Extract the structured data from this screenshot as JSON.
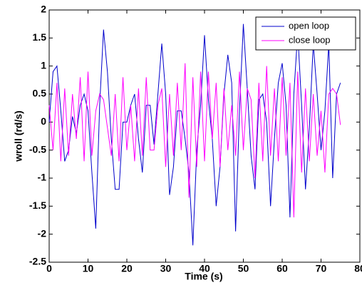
{
  "chart_data": {
    "type": "line",
    "xlabel": "Time (s)",
    "ylabel": "wroll (rd/s)",
    "x": [
      0,
      1,
      2,
      3,
      4,
      5,
      6,
      7,
      8,
      9,
      10,
      11,
      12,
      13,
      14,
      15,
      16,
      17,
      18,
      19,
      20,
      21,
      22,
      23,
      24,
      25,
      26,
      27,
      28,
      29,
      30,
      31,
      32,
      33,
      34,
      35,
      36,
      37,
      38,
      39,
      40,
      41,
      42,
      43,
      44,
      45,
      46,
      47,
      48,
      49,
      50,
      51,
      52,
      53,
      54,
      55,
      56,
      57,
      58,
      59,
      60,
      61,
      62,
      63,
      64,
      65,
      66,
      67,
      68,
      69,
      70,
      71,
      72,
      73,
      74,
      75
    ],
    "series": [
      {
        "name": "open loop",
        "color": "#0000cc",
        "values": [
          0,
          0.9,
          1.0,
          0.2,
          -0.7,
          -0.5,
          0.1,
          -0.2,
          0.3,
          0.5,
          0.2,
          -0.9,
          -1.9,
          0.3,
          1.65,
          0.9,
          -0.3,
          -1.2,
          -1.2,
          0.0,
          0.0,
          0.3,
          0.5,
          -0.3,
          -0.9,
          0.3,
          0.3,
          -0.4,
          0.5,
          1.4,
          0.5,
          -1.3,
          -0.8,
          0.2,
          0.2,
          -0.3,
          -0.9,
          -2.2,
          -0.5,
          0.3,
          1.55,
          0.4,
          -0.3,
          -1.5,
          -0.8,
          0.5,
          1.2,
          0.7,
          -1.95,
          0.2,
          1.75,
          0.6,
          -0.6,
          -1.2,
          0.4,
          0.5,
          0.0,
          -1.5,
          -0.3,
          0.7,
          1.05,
          0.3,
          -1.7,
          0.5,
          1.6,
          0.3,
          -1.2,
          -0.1,
          1.4,
          0.5,
          -0.5,
          0.2,
          1.4,
          -1.0,
          0.5,
          0.7
        ]
      },
      {
        "name": "close loop",
        "color": "#ff00ff",
        "values": [
          0.3,
          -0.5,
          0.7,
          -0.7,
          0.6,
          -0.6,
          0.5,
          -0.3,
          0.8,
          -0.7,
          0.9,
          -0.6,
          0.2,
          0.5,
          0.4,
          -0.1,
          -0.6,
          0.5,
          -0.7,
          0.8,
          -0.5,
          0.3,
          -0.7,
          0.6,
          -0.6,
          0.8,
          -0.5,
          -0.5,
          0.3,
          0.6,
          -0.8,
          0.5,
          -0.6,
          0.7,
          -0.5,
          1.05,
          -1.35,
          0.8,
          -0.8,
          0.9,
          -0.7,
          0.9,
          -0.3,
          0.7,
          -0.8,
          0.6,
          -0.5,
          0.3,
          -0.6,
          0.9,
          -0.5,
          0.6,
          0.4,
          -1.0,
          0.7,
          -0.7,
          1.0,
          -0.6,
          0.6,
          -0.7,
          0.8,
          -0.6,
          0.7,
          -1.7,
          0.9,
          -0.9,
          0.6,
          -0.7,
          0.5,
          -0.6,
          0.2,
          -0.9,
          0.5,
          0.6,
          0.5,
          -0.05
        ]
      }
    ],
    "xlim": [
      0,
      80
    ],
    "xticks": [
      0,
      10,
      20,
      30,
      40,
      50,
      60,
      70,
      80
    ],
    "ylim": [
      -2.5,
      2
    ],
    "yticks": [
      -2.5,
      -2,
      -1.5,
      -1,
      -0.5,
      0,
      0.5,
      1,
      1.5,
      2
    ],
    "grid": false,
    "legend": "top-right"
  }
}
